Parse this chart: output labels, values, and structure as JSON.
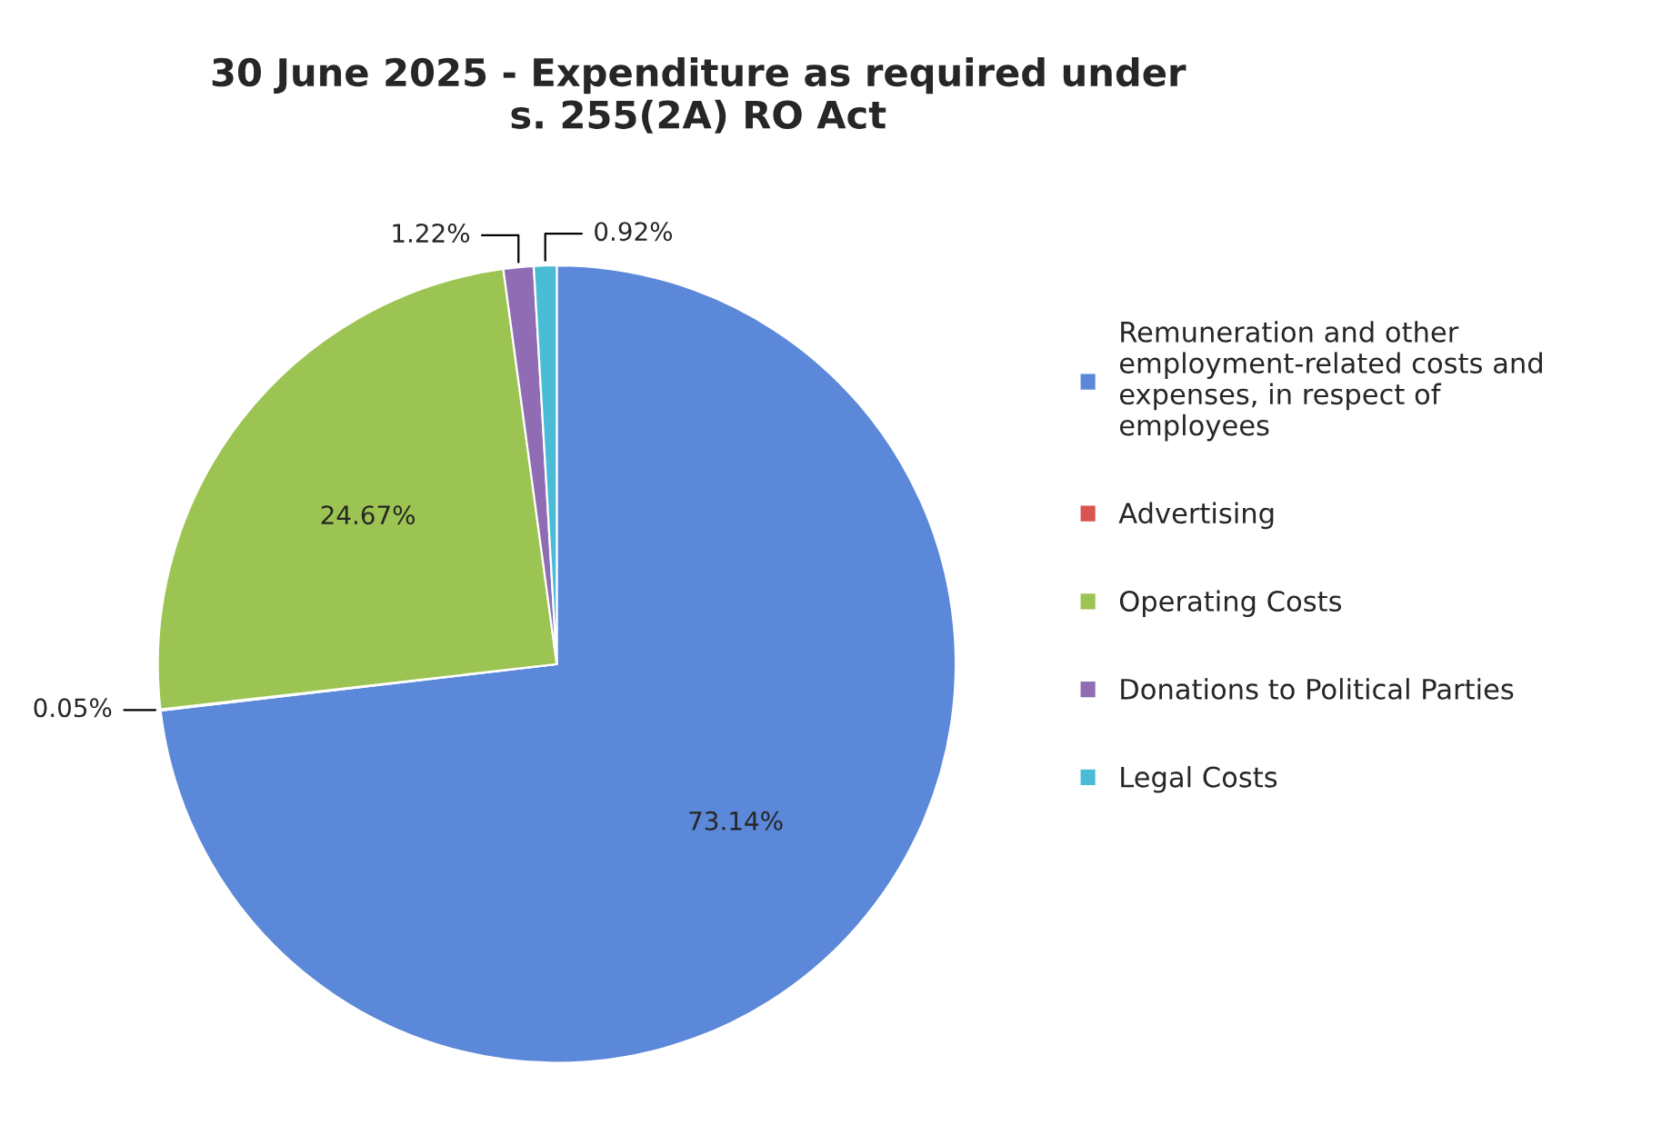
{
  "chart_data": {
    "type": "pie",
    "title": "30 June 2025 - Expenditure as required under\ns. 255(2A) RO Act",
    "categories": [
      "Remuneration and other employment-related costs and expenses, in respect of employees",
      "Advertising",
      "Operating Costs",
      "Donations to Political Parties",
      "Legal Costs"
    ],
    "values": [
      73.14,
      0.05,
      24.67,
      1.22,
      0.92
    ],
    "value_labels": [
      "73.14%",
      "0.05%",
      "24.67%",
      "1.22%",
      "0.92%"
    ],
    "colors": [
      "#5b88d8",
      "#d9534f",
      "#9cc452",
      "#8f6cb3",
      "#4bbcd6"
    ],
    "legend": "right"
  }
}
